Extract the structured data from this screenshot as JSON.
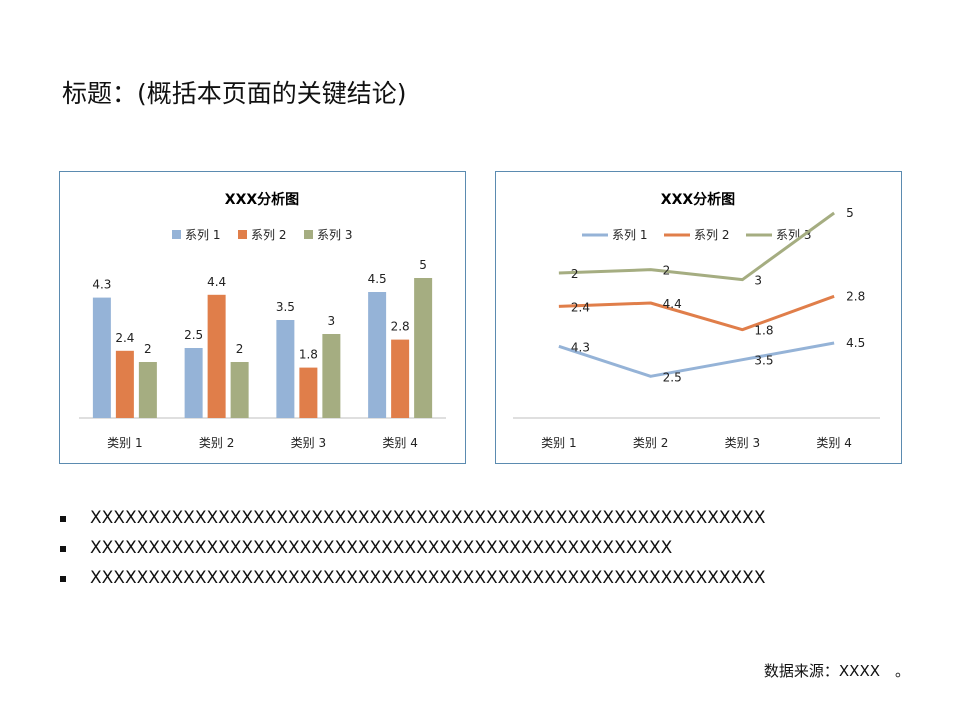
{
  "slide": {
    "title": "标题：(概括本页面的关键结论)",
    "bullets": [
      "XXXXXXXXXXXXXXXXXXXXXXXXXXXXXXXXXXXXXXXXXXXXXXXXXXXXXXXXXX",
      "XXXXXXXXXXXXXXXXXXXXXXXXXXXXXXXXXXXXXXXXXXXXXXXXXX",
      "XXXXXXXXXXXXXXXXXXXXXXXXXXXXXXXXXXXXXXXXXXXXXXXXXXXXXXXXXX"
    ],
    "source": "数据来源：XXXX　。"
  },
  "chart_data": [
    {
      "type": "bar",
      "title": "XXX分析图",
      "categories": [
        "类别 1",
        "类别 2",
        "类别 3",
        "类别 4"
      ],
      "series": [
        {
          "name": "系列 1",
          "values": [
            4.3,
            2.5,
            3.5,
            4.5
          ],
          "color": "#95b3d7"
        },
        {
          "name": "系列 2",
          "values": [
            2.4,
            4.4,
            1.8,
            2.8
          ],
          "color": "#e07e4a"
        },
        {
          "name": "系列 3",
          "values": [
            2,
            2,
            3,
            5
          ],
          "color": "#a5ad81"
        }
      ],
      "ylim": [
        0,
        5
      ],
      "legend": "top",
      "grid": false,
      "data_labels": true
    },
    {
      "type": "line",
      "title": "XXX分析图",
      "categories": [
        "类别 1",
        "类别 2",
        "类别 3",
        "类别 4"
      ],
      "series": [
        {
          "name": "系列 1",
          "values": [
            4.3,
            2.5,
            3.5,
            4.5
          ],
          "color": "#95b3d7"
        },
        {
          "name": "系列 2",
          "values": [
            2.4,
            4.4,
            1.8,
            2.8
          ],
          "color": "#e07e4a"
        },
        {
          "name": "系列 3",
          "values": [
            2,
            2,
            3,
            5
          ],
          "color": "#a5ad81"
        }
      ],
      "stacked": true,
      "ylim": [
        0,
        12
      ],
      "legend": "top",
      "grid": false,
      "data_labels": true
    }
  ]
}
